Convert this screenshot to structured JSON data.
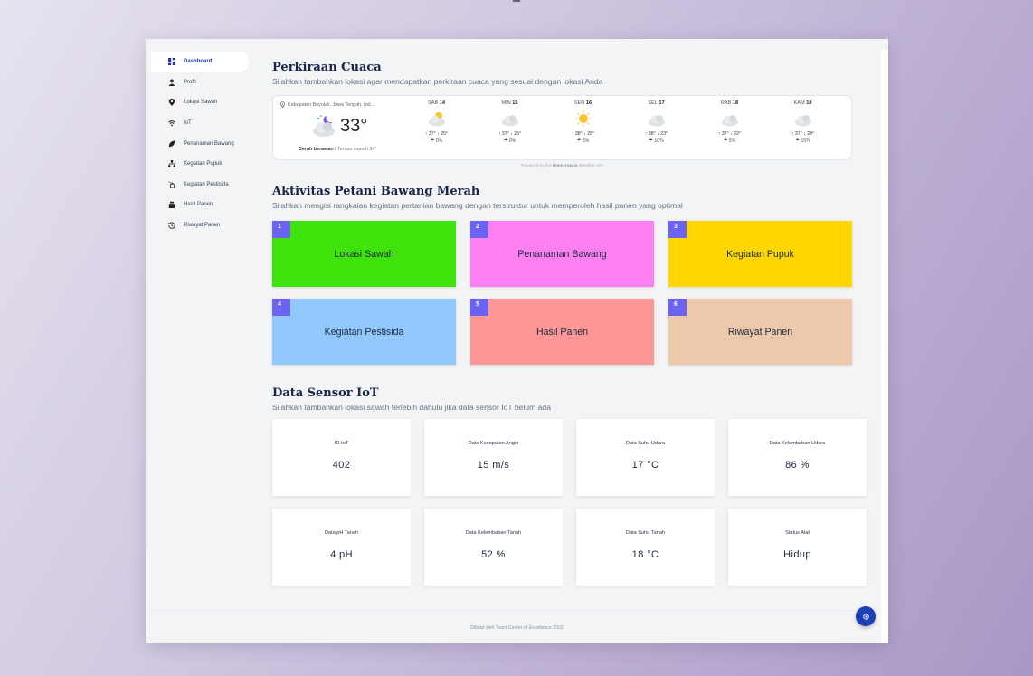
{
  "sidebar": {
    "items": [
      {
        "label": "Dashboard",
        "icon": "dashboard-icon"
      },
      {
        "label": "Profil",
        "icon": "user-icon"
      },
      {
        "label": "Lokasi Sawah",
        "icon": "map-pin-icon"
      },
      {
        "label": "IoT",
        "icon": "wifi-icon"
      },
      {
        "label": "Penanaman Bawang",
        "icon": "leaf-icon"
      },
      {
        "label": "Kegiatan Pupuk",
        "icon": "network-icon"
      },
      {
        "label": "Kegiatan Pestisida",
        "icon": "spray-icon"
      },
      {
        "label": "Hasil Panen",
        "icon": "harvest-icon"
      },
      {
        "label": "Riwayat Panen",
        "icon": "history-icon"
      }
    ]
  },
  "weather": {
    "title": "Perkiraan Cuaca",
    "subtitle": "Silahkan tambahkan lokasi agar mendapatkan perkiraan cuaca yang sesuai dengan lokasi Anda",
    "location": "Kabupaten Boyolali, Jawa Tengah, Ind...",
    "current_temp": "33°",
    "condition": "Cerah berawan",
    "feels_like": " | Terasa seperti 34°",
    "powered_prefix": "Powered by the",
    "powered_brand": "tomorrow.io",
    "powered_suffix": "Weather API",
    "days": [
      {
        "name": "SAB",
        "date": "14",
        "range": "↑ 37° ↓ 25°",
        "rain": "☂ 0%",
        "icon": "partly-cloudy-icon"
      },
      {
        "name": "MIN",
        "date": "15",
        "range": "↑ 37° ↓ 25°",
        "rain": "☂ 0%",
        "icon": "cloud-icon"
      },
      {
        "name": "SEN",
        "date": "16",
        "range": "↑ 38° ↓ 25°",
        "rain": "☂ 5%",
        "icon": "sun-icon"
      },
      {
        "name": "SEL",
        "date": "17",
        "range": "↑ 38° ↓ 23°",
        "rain": "☂ 10%",
        "icon": "cloud-icon"
      },
      {
        "name": "RAB",
        "date": "18",
        "range": "↑ 37° ↓ 22°",
        "rain": "☂ 5%",
        "icon": "cloud-icon"
      },
      {
        "name": "KAM",
        "date": "19",
        "range": "↑ 37° ↓ 24°",
        "rain": "☂ 15%",
        "icon": "cloud-icon"
      }
    ]
  },
  "activities": {
    "title": "Aktivitas Petani Bawang Merah",
    "subtitle": "Silahkan mengisi rangkaian kegiatan pertanian bawang dengan terstruktur untuk memperoleh hasil panen yang optimal",
    "cards": [
      {
        "num": "1",
        "label": "Lokasi Sawah",
        "color": "#3ee30c"
      },
      {
        "num": "2",
        "label": "Penanaman Bawang",
        "color": "#fd80f1"
      },
      {
        "num": "3",
        "label": "Kegiatan Pupuk",
        "color": "#ffd600"
      },
      {
        "num": "4",
        "label": "Kegiatan Pestisida",
        "color": "#90c8fb"
      },
      {
        "num": "5",
        "label": "Hasil Panen",
        "color": "#fd9797"
      },
      {
        "num": "6",
        "label": "Riwayat Panen",
        "color": "#ecc9ab"
      }
    ]
  },
  "sensors": {
    "title": "Data Sensor IoT",
    "subtitle": "Silahkan tambahkan lokasi sawah terlebih dahulu jika data sensor IoT belum ada",
    "items": [
      {
        "label": "ID IoT",
        "value": "402"
      },
      {
        "label": "Data Kecepatan Angin",
        "value": "15 m/s"
      },
      {
        "label": "Data Suhu Udara",
        "value": "17 °C"
      },
      {
        "label": "Data Kelembaban Udara",
        "value": "86 %"
      },
      {
        "label": "Data pH Tanah",
        "value": "4 pH"
      },
      {
        "label": "Data Kelembaban Tanah",
        "value": "52 %"
      },
      {
        "label": "Data Suhu Tanah",
        "value": "18 °C"
      },
      {
        "label": "Status Alat",
        "value": "Hidup"
      }
    ]
  },
  "footer": {
    "text": "Dibuat oleh Team Center of Excellence 2022"
  },
  "colors": {
    "accent": "#1e3fb8",
    "badge": "#6c63f2"
  }
}
